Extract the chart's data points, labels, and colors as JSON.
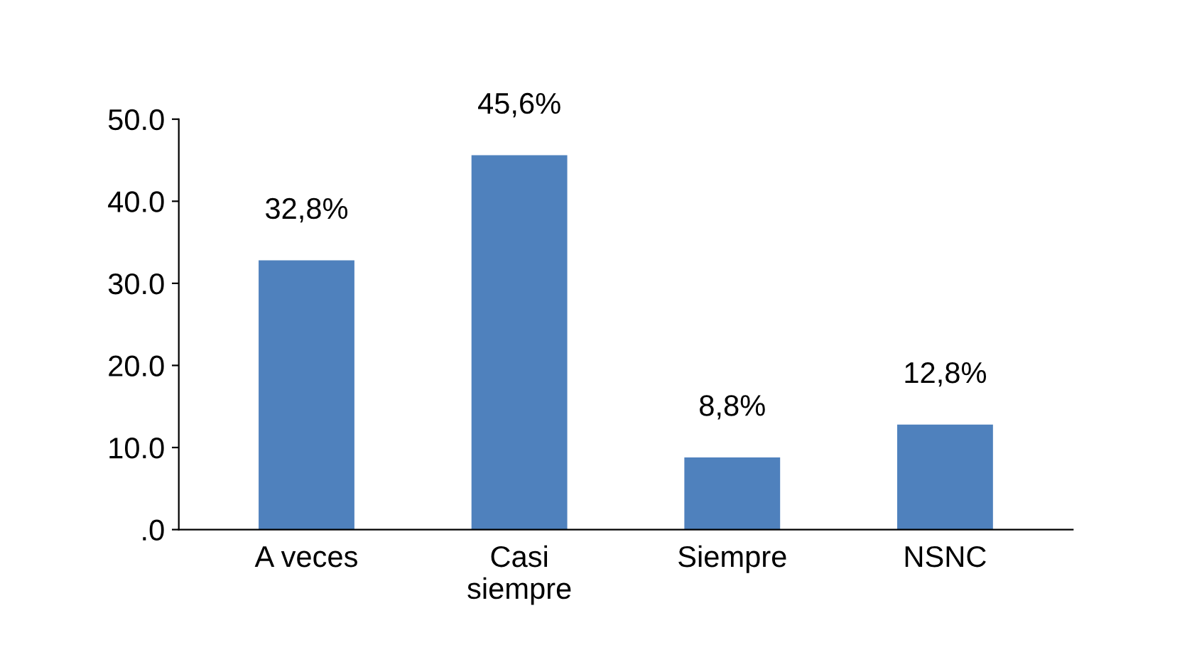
{
  "chart_data": {
    "type": "bar",
    "categories": [
      "A veces",
      "Casi\nsiempre",
      "Siempre",
      "NSNC"
    ],
    "values": [
      32.8,
      45.6,
      8.8,
      12.8
    ],
    "value_labels": [
      "32,8%",
      "45,6%",
      "8,8%",
      "12,8%"
    ],
    "color": "#4f81bd",
    "ylim": [
      0,
      50
    ],
    "yticks": [
      {
        "value": 0,
        "label": ".0"
      },
      {
        "value": 10,
        "label": "10.0"
      },
      {
        "value": 20,
        "label": "20.0"
      },
      {
        "value": 30,
        "label": "30.0"
      },
      {
        "value": 40,
        "label": "40.0"
      },
      {
        "value": 50,
        "label": "50.0"
      }
    ],
    "grid": false,
    "legend": false
  }
}
